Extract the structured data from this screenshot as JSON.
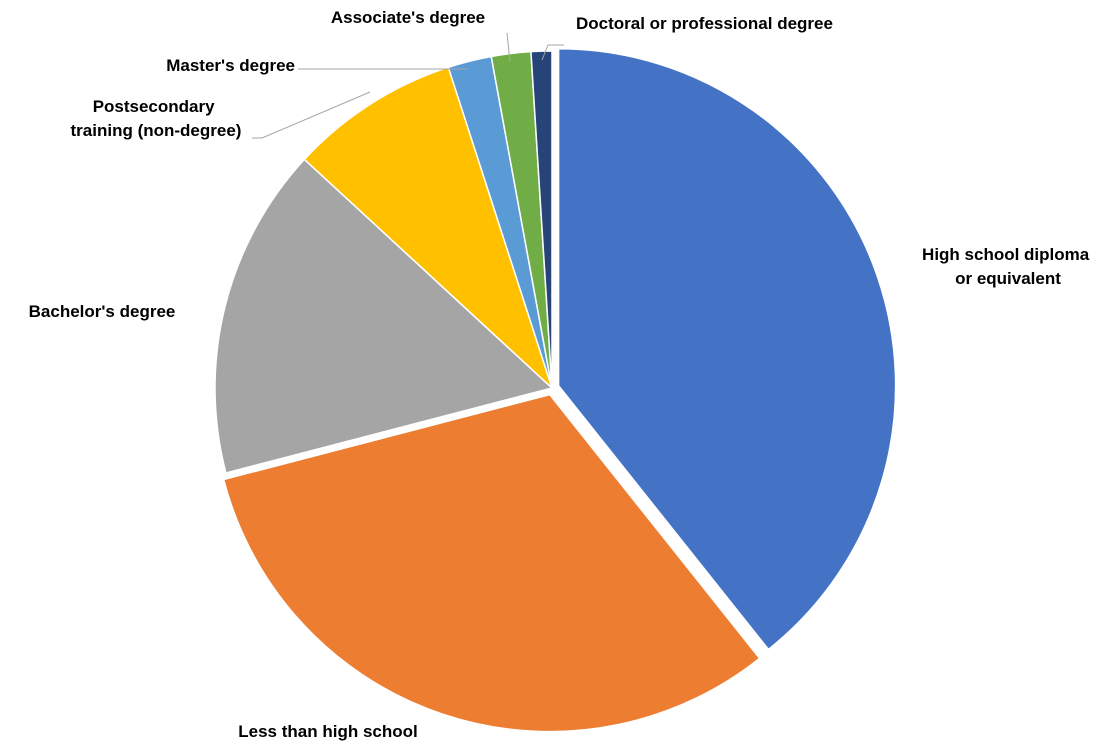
{
  "chart_data": {
    "type": "pie",
    "title": "",
    "slices": [
      {
        "label": "High school diploma or equivalent",
        "value": 39.5,
        "color": "#4472c4",
        "exploded": true
      },
      {
        "label": "Less than high school",
        "value": 31.8,
        "color": "#ed7d31",
        "exploded": true
      },
      {
        "label": "Bachelor's degree",
        "value": 16.0,
        "color": "#a5a5a5",
        "exploded": false
      },
      {
        "label": "Postsecondary training (non-degree)",
        "value": 8.2,
        "color": "#ffc000",
        "exploded": false
      },
      {
        "label": "Master's degree",
        "value": 2.1,
        "color": "#5b9bd5",
        "exploded": false
      },
      {
        "label": "Associate's degree",
        "value": 1.9,
        "color": "#70ad47",
        "exploded": false
      },
      {
        "label": "Doctoral or professional degree",
        "value": 1.0,
        "color": "#264478",
        "exploded": false
      }
    ],
    "legend": "none",
    "data_labels": "category-name-outside"
  }
}
